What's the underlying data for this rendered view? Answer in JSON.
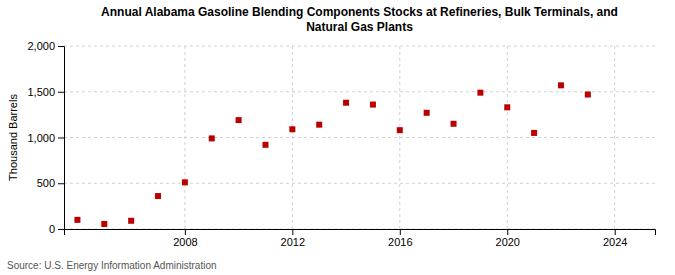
{
  "chart_data": {
    "type": "scatter",
    "title": "Annual Alabama Gasoline Blending Components Stocks at Refineries, Bulk Terminals, and\nNatural Gas Plants",
    "y_label": "Thousand Barrels",
    "annotations": [
      "Source: U.S. Energy Information Administration"
    ],
    "x": [
      2004,
      2005,
      2006,
      2007,
      2008,
      2009,
      2010,
      2011,
      2012,
      2013,
      2014,
      2015,
      2016,
      2017,
      2018,
      2019,
      2020,
      2021,
      2022,
      2023,
      2024
    ],
    "values": [
      100,
      55,
      90,
      360,
      510,
      990,
      1190,
      920,
      1090,
      1140,
      1380,
      1360,
      1080,
      1270,
      1150,
      1490,
      1330,
      1050,
      1570,
      1470,
      null
    ],
    "color": "#bb0000",
    "marker": "square",
    "xlim": [
      2003.5,
      2025.5
    ],
    "xticks": [
      2008,
      2012,
      2016,
      2020,
      2024
    ],
    "ylim": [
      0,
      2000
    ],
    "yticks": [
      0,
      500,
      {
        "value": 1000,
        "label": "1,000"
      },
      {
        "value": 1500,
        "label": "1,500"
      },
      {
        "value": 2000,
        "label": "2,000"
      }
    ],
    "grid": true
  }
}
